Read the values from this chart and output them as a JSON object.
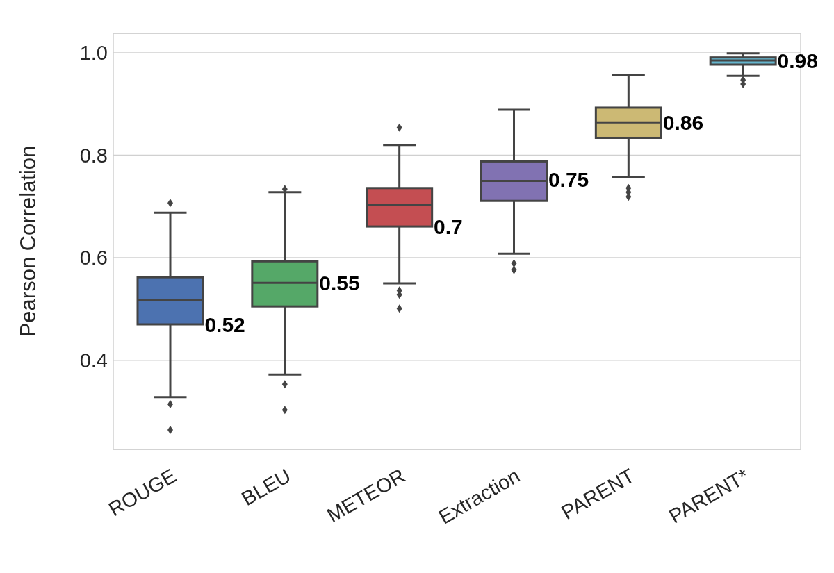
{
  "chart_data": {
    "type": "box",
    "ylabel": "Pearson Correlation",
    "categories": [
      "ROUGE",
      "BLEU",
      "METEOR",
      "Extraction",
      "PARENT",
      "PARENT*"
    ],
    "colors": [
      "#4c72b0",
      "#55a868",
      "#c44e52",
      "#8172b2",
      "#ccb974",
      "#64b5cd"
    ],
    "boxes": [
      {
        "low": 0.328,
        "q1": 0.47,
        "median": 0.518,
        "q3": 0.562,
        "high": 0.688,
        "outliers": [
          0.707,
          0.314,
          0.264
        ]
      },
      {
        "low": 0.372,
        "q1": 0.505,
        "median": 0.551,
        "q3": 0.593,
        "high": 0.728,
        "outliers": [
          0.734,
          0.353,
          0.303
        ]
      },
      {
        "low": 0.55,
        "q1": 0.661,
        "median": 0.703,
        "q3": 0.736,
        "high": 0.82,
        "outliers": [
          0.854,
          0.536,
          0.528,
          0.501
        ]
      },
      {
        "low": 0.608,
        "q1": 0.711,
        "median": 0.75,
        "q3": 0.788,
        "high": 0.889,
        "outliers": [
          0.589,
          0.576
        ]
      },
      {
        "low": 0.758,
        "q1": 0.834,
        "median": 0.864,
        "q3": 0.893,
        "high": 0.957,
        "outliers": [
          0.736,
          0.728,
          0.719
        ]
      },
      {
        "low": 0.955,
        "q1": 0.977,
        "median": 0.985,
        "q3": 0.991,
        "high": 0.999,
        "outliers": [
          0.947,
          0.939
        ]
      }
    ],
    "annotations": [
      {
        "text": "0.52",
        "x": "ROUGE",
        "y": 0.47
      },
      {
        "text": "0.55",
        "x": "BLEU",
        "y": 0.551
      },
      {
        "text": "0.7",
        "x": "METEOR",
        "y": 0.661
      },
      {
        "text": "0.75",
        "x": "Extraction",
        "y": 0.753
      },
      {
        "text": "0.86",
        "x": "PARENT",
        "y": 0.864
      },
      {
        "text": "0.98",
        "x": "PARENT*",
        "y": 0.985
      }
    ],
    "ylim": [
      0.226,
      1.038
    ],
    "yticks": [
      0.4,
      0.6,
      0.8,
      {
        "value": 1,
        "label": "1.0"
      }
    ],
    "grid": "y"
  }
}
